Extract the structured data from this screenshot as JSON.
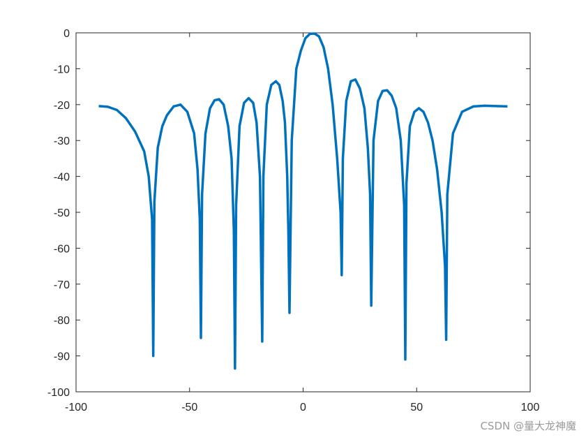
{
  "chart_data": {
    "type": "line",
    "title": "",
    "xlabel": "",
    "ylabel": "",
    "xlim": [
      -100,
      100
    ],
    "ylim": [
      -100,
      0
    ],
    "xticks": [
      "-100",
      "-50",
      "0",
      "50",
      "100"
    ],
    "yticks": [
      "0",
      "-10",
      "-20",
      "-30",
      "-40",
      "-50",
      "-60",
      "-70",
      "-80",
      "-90",
      "-100"
    ],
    "grid": false,
    "line_color": "#0072BD",
    "series": [
      {
        "x": [
          -90,
          -86,
          -82,
          -78,
          -74,
          -70,
          -68,
          -66.5,
          -66,
          -65.5,
          -64,
          -62,
          -60,
          -57,
          -54,
          -51,
          -48,
          -46.5,
          -45.5,
          -45,
          -44.5,
          -43,
          -41,
          -39,
          -37,
          -35,
          -33,
          -31.5,
          -30.5,
          -30,
          -29.5,
          -28,
          -26,
          -24,
          -22,
          -20.5,
          -19,
          -18,
          -17.5,
          -16,
          -14,
          -12,
          -10.5,
          -9,
          -8,
          -7,
          -6.5,
          -6,
          -5,
          -3,
          -1,
          1,
          3,
          5,
          7,
          9,
          11,
          13,
          15,
          16.5,
          17,
          17.5,
          19,
          21,
          23,
          25,
          27,
          28.5,
          29.5,
          30,
          31,
          33,
          35,
          37,
          39,
          41,
          43,
          44.5,
          45,
          45.5,
          47,
          49,
          51,
          53,
          55,
          57,
          59,
          61,
          62.5,
          63,
          63.5,
          66,
          70,
          75,
          80,
          85,
          90
        ],
        "values": [
          -20.4,
          -20.6,
          -21.5,
          -23.8,
          -27.5,
          -33,
          -40,
          -52,
          -90,
          -47,
          -32,
          -26,
          -23,
          -20.5,
          -20,
          -22,
          -28,
          -38,
          -52,
          -85,
          -45,
          -28,
          -21,
          -18.8,
          -18.5,
          -20,
          -26,
          -35,
          -55,
          -93.5,
          -48,
          -26,
          -19.5,
          -18.2,
          -19.5,
          -25,
          -40,
          -86,
          -40,
          -20,
          -14.5,
          -13.5,
          -14.5,
          -19,
          -25,
          -40,
          -55,
          -78,
          -30,
          -10,
          -5,
          -1.5,
          -0.3,
          -0.2,
          -1,
          -4,
          -10,
          -20,
          -35,
          -50,
          -67.5,
          -35,
          -19,
          -13.5,
          -13,
          -15.5,
          -21,
          -32,
          -45,
          -76,
          -30,
          -19,
          -16.2,
          -16,
          -17.5,
          -21,
          -30,
          -48,
          -91,
          -42,
          -26,
          -22,
          -21,
          -22,
          -25,
          -30,
          -38,
          -50,
          -65,
          -85.5,
          -45,
          -28,
          -22,
          -20.5,
          -20.3,
          -20.4,
          -20.5
        ]
      }
    ]
  },
  "watermark": "CSDN @量大龙神魔"
}
